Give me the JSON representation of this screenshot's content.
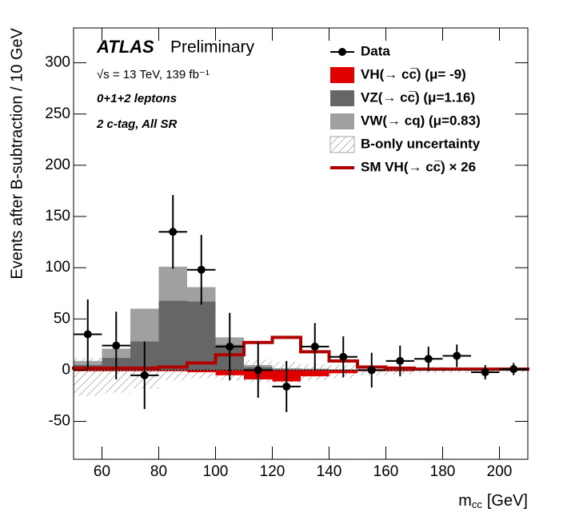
{
  "chart_data": {
    "type": "histogram",
    "title": "ATLAS",
    "subtitle": "Preliminary",
    "annotations": [
      "√s = 13 TeV, 139 fb⁻¹",
      "0+1+2 leptons",
      "2 c-tag, All SR"
    ],
    "xlabel": [
      "m",
      "cc",
      "[GeV]"
    ],
    "ylabel": "Events after B-subtraction / 10 GeV",
    "bins": [
      50,
      60,
      70,
      80,
      90,
      100,
      110,
      120,
      130,
      140,
      150,
      160,
      170,
      180,
      190,
      200,
      210
    ],
    "xlim": [
      50,
      210
    ],
    "ylim": [
      -87,
      334
    ],
    "xticks": [
      60,
      80,
      100,
      120,
      140,
      160,
      180,
      200
    ],
    "yticks": [
      -50,
      0,
      50,
      100,
      150,
      200,
      250,
      300
    ],
    "legend": "upper right",
    "series": [
      {
        "name": "VH(→ cc̅) (μ= -9)",
        "color": "#e00000",
        "values": [
          -1,
          -1,
          -1,
          -1,
          -2,
          -5,
          -9,
          -11,
          -6,
          -3,
          -1,
          -1,
          0,
          0,
          0,
          0
        ]
      },
      {
        "name": "VZ(→ cc̅) (μ=1.16)",
        "color": "#666666",
        "values": [
          5,
          12,
          28,
          68,
          67,
          25,
          3,
          1,
          1,
          0.5,
          0.5,
          0.5,
          0.5,
          0.5,
          0.5,
          0.5
        ]
      },
      {
        "name": "VW(→ cq) (μ=0.83)",
        "color": "#a0a0a0",
        "values": [
          4,
          9,
          32,
          33,
          14,
          7,
          2,
          1,
          0.5,
          0.5,
          0.5,
          0.5,
          0.5,
          0.5,
          0.5,
          0.5
        ]
      }
    ],
    "band": {
      "name": "B-only uncertainty",
      "low": [
        -25,
        -22,
        -18,
        -10,
        -8,
        -10,
        -12,
        -12,
        -10,
        -8,
        -5,
        -4,
        -3,
        -3,
        -2,
        -2
      ],
      "high": [
        12,
        18,
        22,
        20,
        18,
        12,
        10,
        8,
        6,
        5,
        4,
        3,
        3,
        2,
        2,
        2
      ]
    },
    "line": {
      "name": "SM VH(→ cc̅) × 26",
      "color": "#b00000",
      "values": [
        2,
        2,
        2,
        3,
        7,
        15,
        27,
        32,
        18,
        9,
        3,
        2,
        1,
        1,
        1,
        1
      ]
    },
    "data": {
      "name": "Data",
      "color": "#000000",
      "x": [
        55,
        65,
        75,
        85,
        95,
        105,
        115,
        125,
        135,
        145,
        155,
        165,
        175,
        185,
        195,
        205
      ],
      "values": [
        35,
        24,
        -5,
        135,
        98,
        23,
        0,
        -16,
        23,
        13,
        0,
        9,
        11,
        14,
        -2,
        1
      ],
      "errors": [
        34,
        33,
        33,
        36,
        34,
        33,
        27,
        25,
        23,
        20,
        17,
        15,
        12,
        11,
        7,
        6
      ]
    }
  }
}
